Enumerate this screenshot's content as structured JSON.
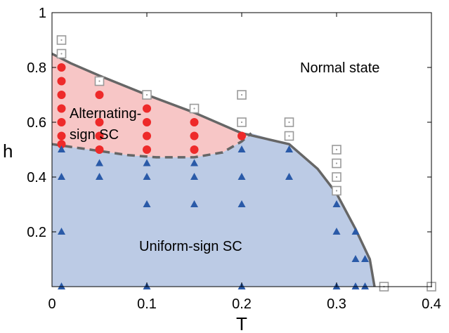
{
  "chart_data": {
    "type": "scatter",
    "title": "",
    "xlabel": "T",
    "ylabel": "h",
    "xlim": [
      0,
      0.4
    ],
    "ylim": [
      0,
      1
    ],
    "xticks": [
      {
        "value": 0,
        "label": "0"
      },
      {
        "value": 0.1,
        "label": "0.1"
      },
      {
        "value": 0.2,
        "label": "0.2"
      },
      {
        "value": 0.3,
        "label": "0.3"
      },
      {
        "value": 0.4,
        "label": "0.4"
      }
    ],
    "yticks": [
      {
        "value": 0.2,
        "label": "0.2"
      },
      {
        "value": 0.4,
        "label": "0.4"
      },
      {
        "value": 0.6,
        "label": "0.6"
      },
      {
        "value": 0.8,
        "label": "0.8"
      },
      {
        "value": 1,
        "label": "1"
      }
    ],
    "grid": false,
    "legend": "none",
    "regions": [
      {
        "label": "Normal state",
        "color": "#ffffff"
      },
      {
        "label": "Alternating-\nsign SC",
        "color": "#f7c6c6"
      },
      {
        "label": "Uniform-sign SC",
        "color": "#bccbe5"
      }
    ],
    "boundaries": {
      "upper_solid": [
        [
          0.0,
          0.85
        ],
        [
          0.02,
          0.815
        ],
        [
          0.05,
          0.77
        ],
        [
          0.1,
          0.7
        ],
        [
          0.15,
          0.635
        ],
        [
          0.2,
          0.56
        ],
        [
          0.25,
          0.52
        ],
        [
          0.28,
          0.43
        ],
        [
          0.3,
          0.34
        ],
        [
          0.32,
          0.21
        ],
        [
          0.335,
          0.1
        ],
        [
          0.34,
          0.0
        ]
      ],
      "lower_dashed": [
        [
          0.0,
          0.52
        ],
        [
          0.02,
          0.51
        ],
        [
          0.05,
          0.495
        ],
        [
          0.08,
          0.48
        ],
        [
          0.11,
          0.472
        ],
        [
          0.15,
          0.472
        ],
        [
          0.18,
          0.49
        ],
        [
          0.2,
          0.53
        ],
        [
          0.21,
          0.56
        ]
      ],
      "line_color": "#666666"
    },
    "series": [
      {
        "marker": "circle",
        "color": "#ee2a2a",
        "points": [
          [
            0.01,
            0.8
          ],
          [
            0.01,
            0.75
          ],
          [
            0.01,
            0.7
          ],
          [
            0.01,
            0.65
          ],
          [
            0.01,
            0.6
          ],
          [
            0.01,
            0.55
          ],
          [
            0.01,
            0.52
          ],
          [
            0.05,
            0.7
          ],
          [
            0.05,
            0.6
          ],
          [
            0.05,
            0.55
          ],
          [
            0.05,
            0.5
          ],
          [
            0.1,
            0.65
          ],
          [
            0.1,
            0.6
          ],
          [
            0.1,
            0.55
          ],
          [
            0.1,
            0.5
          ],
          [
            0.15,
            0.6
          ],
          [
            0.15,
            0.55
          ],
          [
            0.15,
            0.5
          ],
          [
            0.2,
            0.55
          ]
        ]
      },
      {
        "marker": "triangle",
        "color": "#2a5aa8",
        "points": [
          [
            0.01,
            0.5
          ],
          [
            0.01,
            0.4
          ],
          [
            0.01,
            0.2
          ],
          [
            0.01,
            0.0
          ],
          [
            0.05,
            0.45
          ],
          [
            0.05,
            0.4
          ],
          [
            0.1,
            0.45
          ],
          [
            0.1,
            0.4
          ],
          [
            0.1,
            0.3
          ],
          [
            0.1,
            0.0
          ],
          [
            0.15,
            0.45
          ],
          [
            0.15,
            0.4
          ],
          [
            0.15,
            0.3
          ],
          [
            0.2,
            0.5
          ],
          [
            0.2,
            0.4
          ],
          [
            0.2,
            0.3
          ],
          [
            0.2,
            0.0
          ],
          [
            0.25,
            0.5
          ],
          [
            0.25,
            0.4
          ],
          [
            0.3,
            0.3
          ],
          [
            0.3,
            0.2
          ],
          [
            0.3,
            0.0
          ],
          [
            0.32,
            0.2
          ],
          [
            0.32,
            0.1
          ],
          [
            0.32,
            0.0
          ],
          [
            0.33,
            0.1
          ],
          [
            0.33,
            0.0
          ]
        ]
      },
      {
        "marker": "dotted-square",
        "color": "#9a9a9a",
        "points": [
          [
            0.01,
            0.9
          ],
          [
            0.01,
            0.85
          ],
          [
            0.05,
            0.75
          ],
          [
            0.1,
            0.7
          ],
          [
            0.15,
            0.65
          ],
          [
            0.2,
            0.7
          ],
          [
            0.2,
            0.6
          ],
          [
            0.25,
            0.6
          ],
          [
            0.25,
            0.55
          ],
          [
            0.3,
            0.5
          ],
          [
            0.3,
            0.45
          ],
          [
            0.3,
            0.4
          ],
          [
            0.3,
            0.35
          ],
          [
            0.35,
            0.0
          ],
          [
            0.4,
            0.0
          ]
        ]
      }
    ]
  }
}
